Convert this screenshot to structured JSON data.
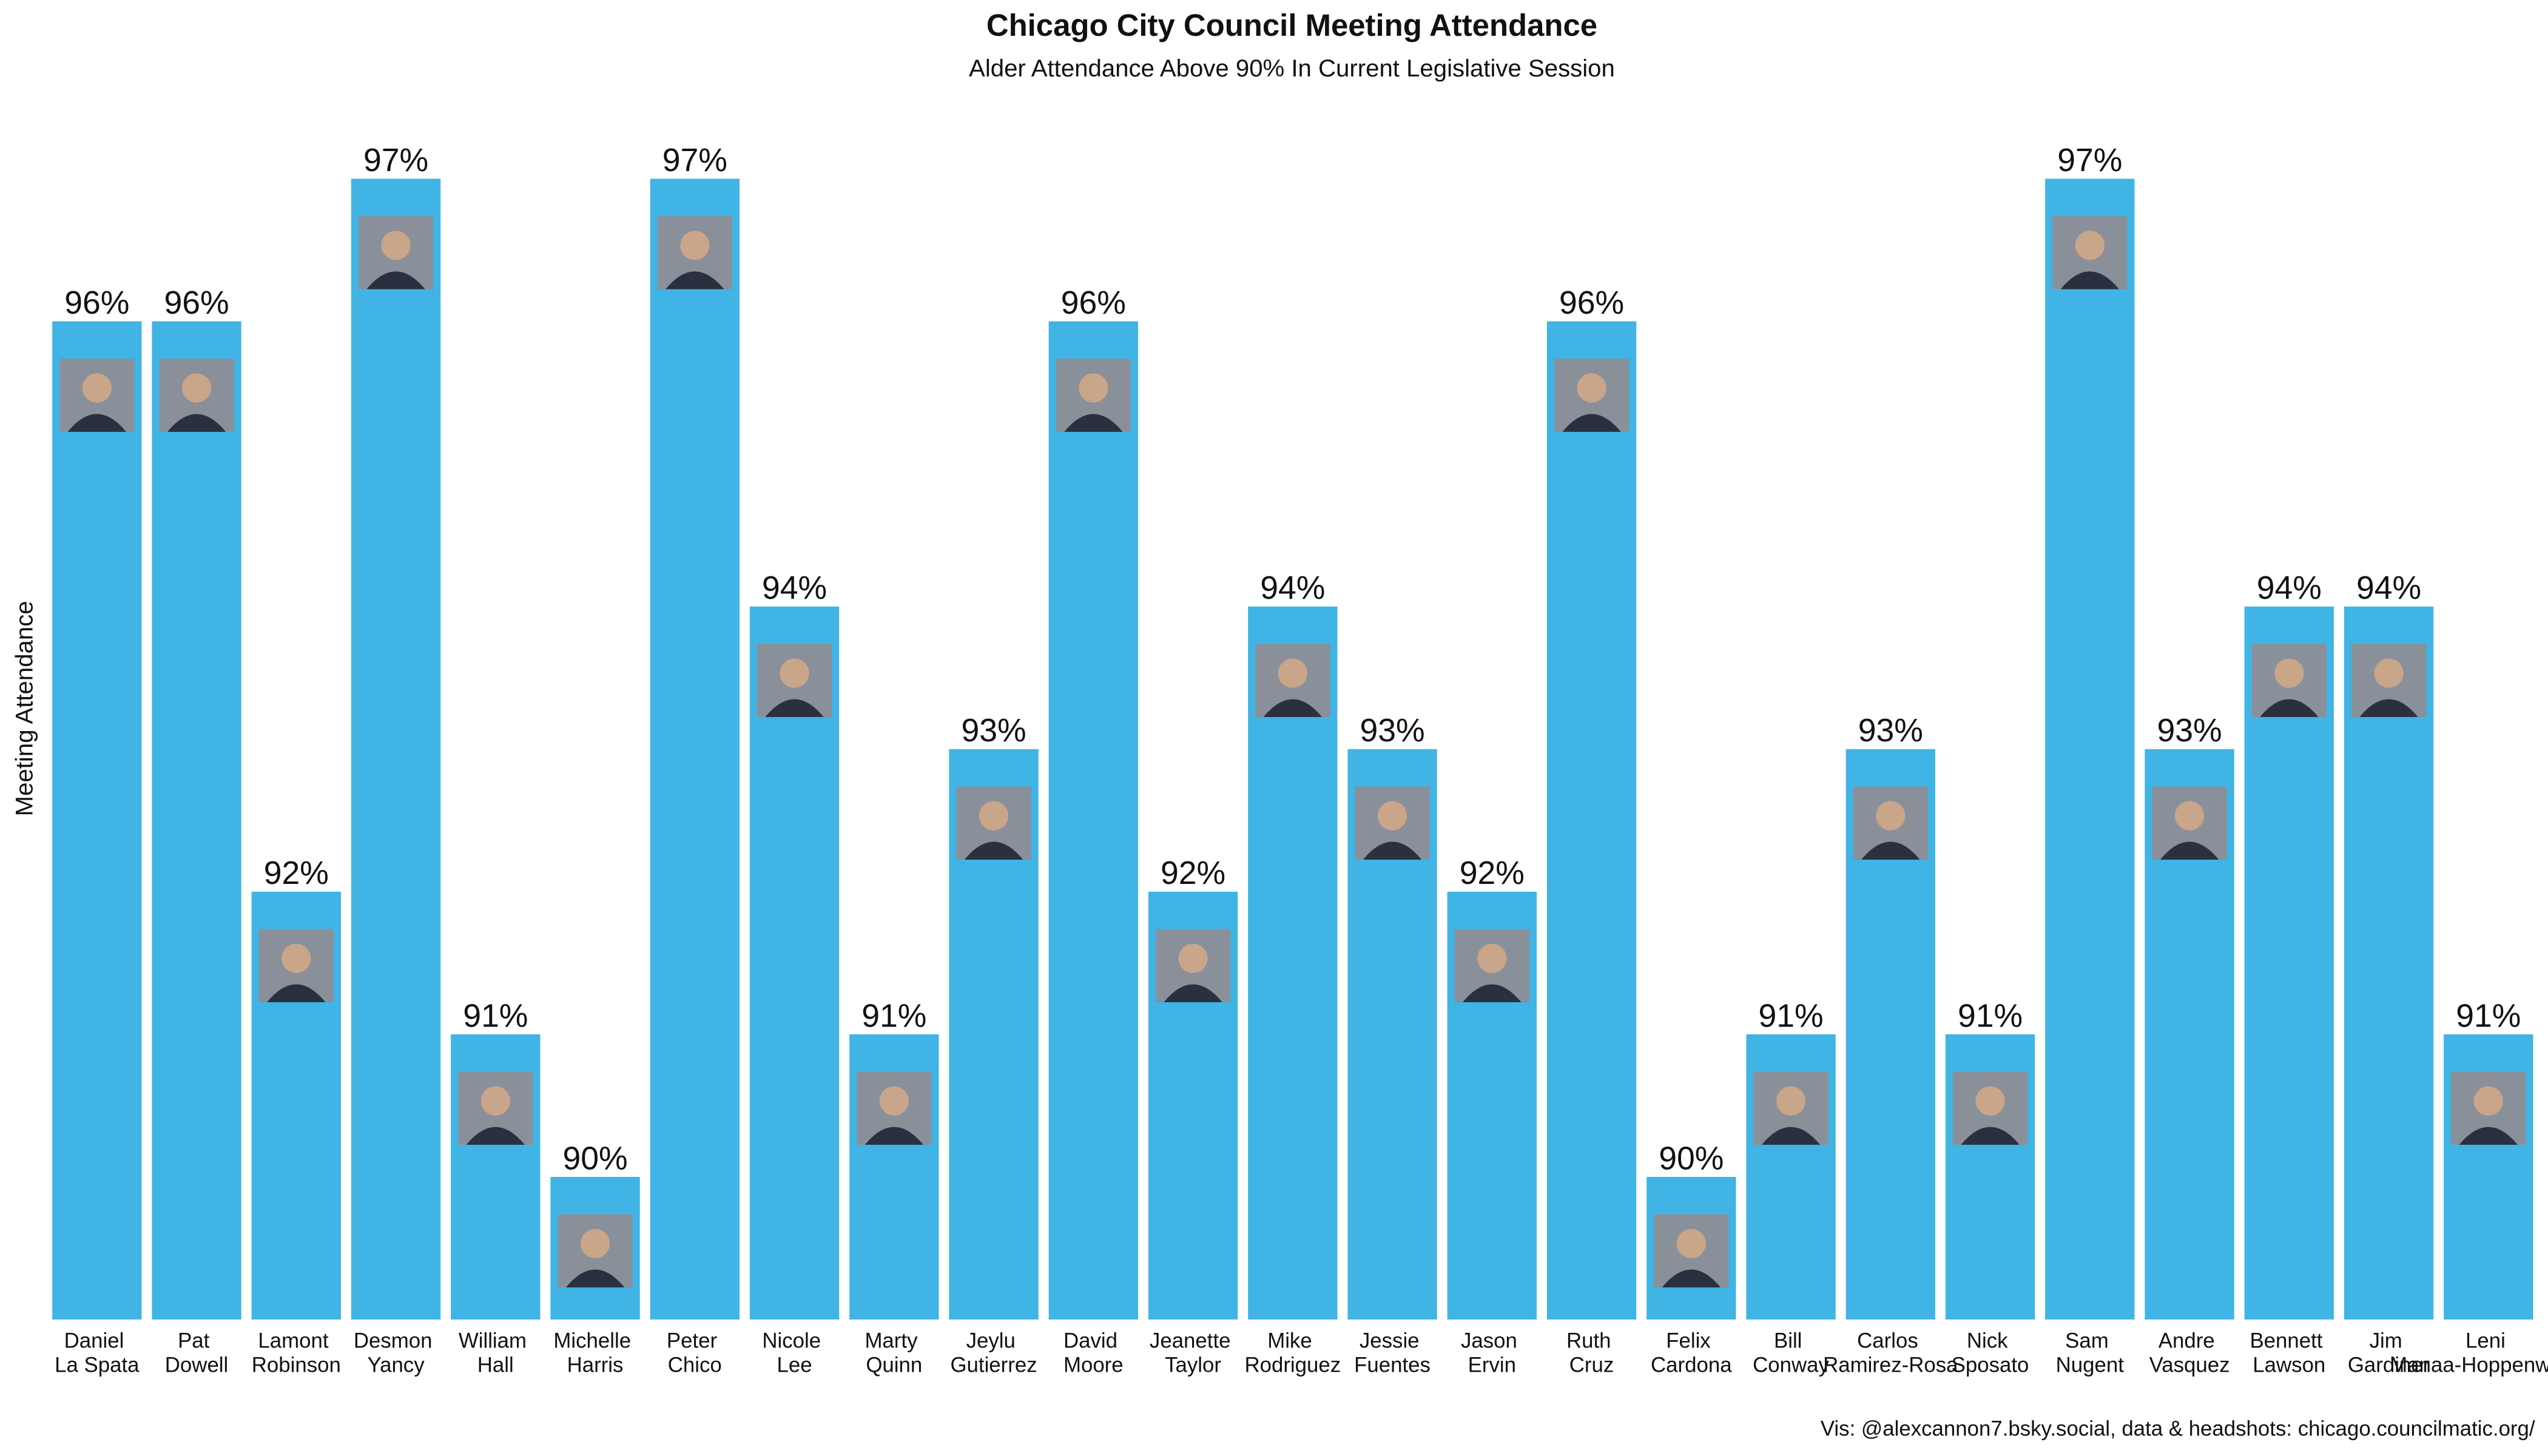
{
  "chart_data": {
    "type": "bar",
    "title": "Chicago City Council Meeting Attendance",
    "subtitle": "Alder Attendance Above 90% In Current Legislative Session",
    "y_label": "Meeting Attendance",
    "caption": "Vis: @alexcannon7.bsky.social, data & headshots: chicago.councilmatic.org/",
    "color": "#40b4e5",
    "ylim": [
      89,
      97
    ],
    "categories": [
      "Daniel La Spata",
      "Pat Dowell",
      "Lamont Robinson",
      "Desmon Yancy",
      "William Hall",
      "Michelle Harris",
      "Peter Chico",
      "Nicole Lee",
      "Marty Quinn",
      "Jeylu Gutierrez",
      "David Moore",
      "Jeanette Taylor",
      "Mike Rodriguez",
      "Jessie Fuentes",
      "Jason Ervin",
      "Ruth Cruz",
      "Felix Cardona",
      "Bill Conway",
      "Carlos Ramirez-Rosa",
      "Nick Sposato",
      "Sam Nugent",
      "Andre Vasquez",
      "Bennett Lawson",
      "Jim Gardiner",
      "Leni Manaa-Hoppenworth"
    ],
    "values": [
      96,
      96,
      92,
      97,
      91,
      90,
      97,
      94,
      91,
      93,
      96,
      92,
      94,
      93,
      92,
      96,
      90,
      91,
      93,
      91,
      97,
      93,
      94,
      94,
      91
    ],
    "value_labels": [
      "96%",
      "96%",
      "92%",
      "97%",
      "91%",
      "90%",
      "97%",
      "94%",
      "91%",
      "93%",
      "96%",
      "92%",
      "94%",
      "93%",
      "92%",
      "96%",
      "90%",
      "91%",
      "93%",
      "91%",
      "97%",
      "93%",
      "94%",
      "94%",
      "91%"
    ]
  }
}
